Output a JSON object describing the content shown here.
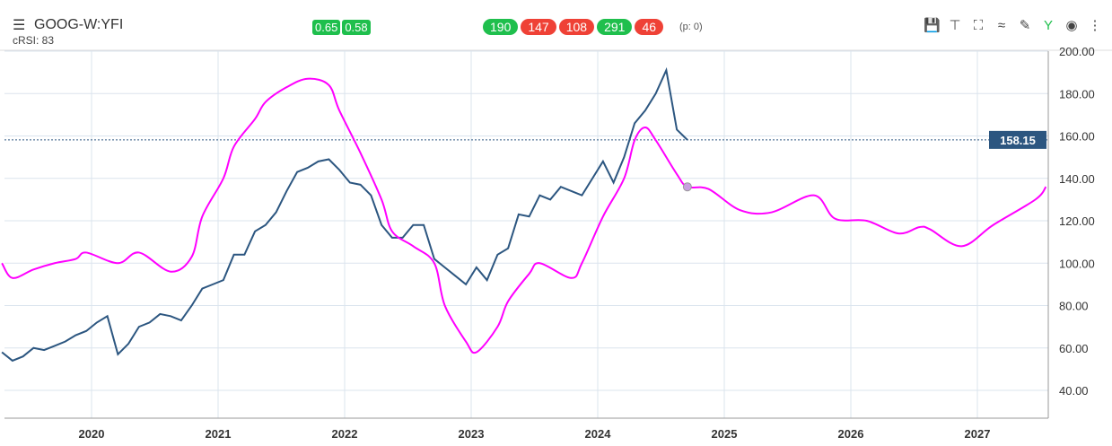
{
  "header": {
    "symbol": "GOOG-W:YFI",
    "indicator": "cRSI: 83",
    "small_badges": [
      {
        "v": "0.65",
        "c": "g"
      },
      {
        "v": "0.58",
        "c": "g"
      }
    ],
    "pills": [
      {
        "v": "190",
        "c": "g"
      },
      {
        "v": "147",
        "c": "r"
      },
      {
        "v": "108",
        "c": "r"
      },
      {
        "v": "291",
        "c": "g"
      },
      {
        "v": "46",
        "c": "r"
      }
    ],
    "p_label": "(p: 0)",
    "toolbar_icons": [
      "save-icon",
      "pin-icon",
      "fullscreen-icon",
      "indicator-icon",
      "draw-icon",
      "fork-icon",
      "eye-icon",
      "more-icon"
    ]
  },
  "chart_data": {
    "type": "line",
    "x_ticks": [
      "2020",
      "2021",
      "2022",
      "2023",
      "2024",
      "2025",
      "2026",
      "2027"
    ],
    "y_ticks": [
      "40.00",
      "60.00",
      "80.00",
      "100.00",
      "120.00",
      "140.00",
      "160.00",
      "180.00",
      "200.00"
    ],
    "ylim": [
      27,
      205
    ],
    "xlim": [
      "2019-04",
      "2027-07"
    ],
    "grid": true,
    "last_price": "158.15",
    "last_price_color": "#2c5680",
    "series": [
      {
        "color": "#2c5680",
        "points": [
          [
            "2019-04",
            58
          ],
          [
            "2019-05",
            54
          ],
          [
            "2019-06",
            56
          ],
          [
            "2019-07",
            60
          ],
          [
            "2019-08",
            59
          ],
          [
            "2019-09",
            61
          ],
          [
            "2019-10",
            63
          ],
          [
            "2019-11",
            66
          ],
          [
            "2019-12",
            68
          ],
          [
            "2020-01",
            72
          ],
          [
            "2020-02",
            75
          ],
          [
            "2020-03",
            57
          ],
          [
            "2020-04",
            62
          ],
          [
            "2020-05",
            70
          ],
          [
            "2020-06",
            72
          ],
          [
            "2020-07",
            76
          ],
          [
            "2020-08",
            75
          ],
          [
            "2020-09",
            73
          ],
          [
            "2020-10",
            80
          ],
          [
            "2020-11",
            88
          ],
          [
            "2020-12",
            90
          ],
          [
            "2021-01",
            92
          ],
          [
            "2021-02",
            104
          ],
          [
            "2021-03",
            104
          ],
          [
            "2021-04",
            115
          ],
          [
            "2021-05",
            118
          ],
          [
            "2021-06",
            124
          ],
          [
            "2021-07",
            134
          ],
          [
            "2021-08",
            143
          ],
          [
            "2021-09",
            145
          ],
          [
            "2021-10",
            148
          ],
          [
            "2021-11",
            149
          ],
          [
            "2021-12",
            144
          ],
          [
            "2022-01",
            138
          ],
          [
            "2022-02",
            137
          ],
          [
            "2022-03",
            132
          ],
          [
            "2022-04",
            118
          ],
          [
            "2022-05",
            112
          ],
          [
            "2022-06",
            112
          ],
          [
            "2022-07",
            118
          ],
          [
            "2022-08",
            118
          ],
          [
            "2022-09",
            102
          ],
          [
            "2022-10",
            98
          ],
          [
            "2022-11",
            94
          ],
          [
            "2022-12",
            90
          ],
          [
            "2023-01",
            98
          ],
          [
            "2023-02",
            92
          ],
          [
            "2023-03",
            104
          ],
          [
            "2023-04",
            107
          ],
          [
            "2023-05",
            123
          ],
          [
            "2023-06",
            122
          ],
          [
            "2023-07",
            132
          ],
          [
            "2023-08",
            130
          ],
          [
            "2023-09",
            136
          ],
          [
            "2023-10",
            134
          ],
          [
            "2023-11",
            132
          ],
          [
            "2023-12",
            140
          ],
          [
            "2024-01",
            148
          ],
          [
            "2024-02",
            138
          ],
          [
            "2024-03",
            150
          ],
          [
            "2024-04",
            166
          ],
          [
            "2024-05",
            172
          ],
          [
            "2024-06",
            180
          ],
          [
            "2024-07",
            191
          ],
          [
            "2024-08",
            163
          ],
          [
            "2024-09",
            158.15
          ]
        ]
      },
      {
        "color": "#ff00ff",
        "marker_at": "2024-09",
        "points": [
          [
            "2019-04",
            100
          ],
          [
            "2019-05",
            93
          ],
          [
            "2019-07",
            97
          ],
          [
            "2019-09",
            100
          ],
          [
            "2019-11",
            102
          ],
          [
            "2019-12",
            105
          ],
          [
            "2020-03",
            100
          ],
          [
            "2020-05",
            105
          ],
          [
            "2020-08",
            96
          ],
          [
            "2020-10",
            103
          ],
          [
            "2020-11",
            122
          ],
          [
            "2021-01",
            140
          ],
          [
            "2021-02",
            155
          ],
          [
            "2021-04",
            168
          ],
          [
            "2021-05",
            176
          ],
          [
            "2021-07",
            183
          ],
          [
            "2021-09",
            187
          ],
          [
            "2021-11",
            184
          ],
          [
            "2021-12",
            172
          ],
          [
            "2022-02",
            152
          ],
          [
            "2022-04",
            130
          ],
          [
            "2022-05",
            115
          ],
          [
            "2022-07",
            108
          ],
          [
            "2022-09",
            100
          ],
          [
            "2022-10",
            80
          ],
          [
            "2022-12",
            63
          ],
          [
            "2023-01",
            58
          ],
          [
            "2023-03",
            70
          ],
          [
            "2023-04",
            82
          ],
          [
            "2023-06",
            95
          ],
          [
            "2023-07",
            100
          ],
          [
            "2023-10",
            93
          ],
          [
            "2023-11",
            100
          ],
          [
            "2024-01",
            122
          ],
          [
            "2024-03",
            140
          ],
          [
            "2024-04",
            158
          ],
          [
            "2024-05",
            164
          ],
          [
            "2024-06",
            158
          ],
          [
            "2024-08",
            142
          ],
          [
            "2024-09",
            136
          ],
          [
            "2024-11",
            135
          ],
          [
            "2025-02",
            125
          ],
          [
            "2025-05",
            124
          ],
          [
            "2025-09",
            132
          ],
          [
            "2025-11",
            121
          ],
          [
            "2026-02",
            120
          ],
          [
            "2026-05",
            114
          ],
          [
            "2026-07",
            117
          ],
          [
            "2026-08",
            116
          ],
          [
            "2026-11",
            108
          ],
          [
            "2027-02",
            118
          ],
          [
            "2027-06",
            130
          ],
          [
            "2027-07",
            136
          ]
        ]
      }
    ]
  }
}
